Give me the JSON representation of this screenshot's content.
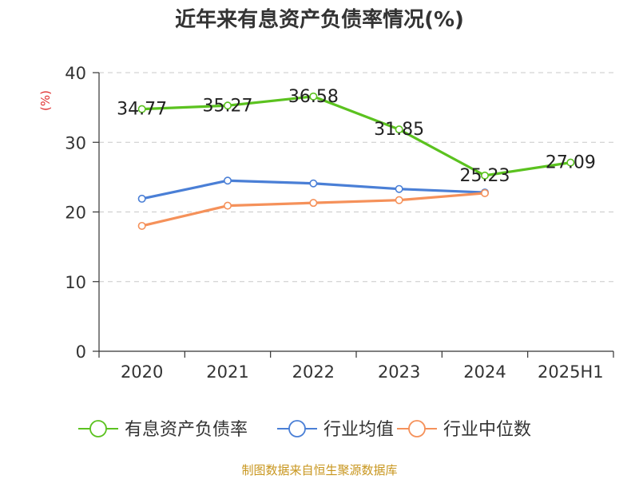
{
  "chart_data": {
    "type": "line",
    "title": "近年来有息资产负债率情况(%)",
    "ylabel": "(%)",
    "xlabel": "",
    "categories": [
      "2020",
      "2021",
      "2022",
      "2023",
      "2024",
      "2025H1"
    ],
    "ylim": [
      0,
      40
    ],
    "yticks": [
      0,
      10,
      20,
      30,
      40
    ],
    "grid": true,
    "legend_position": "bottom",
    "series": [
      {
        "name": "有息资产负债率",
        "color": "#5bc21f",
        "values": [
          34.77,
          35.27,
          36.58,
          31.85,
          25.23,
          27.09
        ],
        "labels": [
          "34.77",
          "35.27",
          "36.58",
          "31.85",
          "25.23",
          "27.09"
        ],
        "show_labels": true
      },
      {
        "name": "行业均值",
        "color": "#4a7fd6",
        "values": [
          21.9,
          24.5,
          24.1,
          23.3,
          22.8,
          null
        ],
        "show_labels": false
      },
      {
        "name": "行业中位数",
        "color": "#f5915a",
        "values": [
          18.0,
          20.9,
          21.3,
          21.7,
          22.7,
          null
        ],
        "show_labels": false
      }
    ]
  },
  "source": "制图数据来自恒生聚源数据库",
  "colors": {
    "axis": "#333333",
    "grid": "#c8c8c8",
    "ylabel": "#e03030",
    "source": "#c8961e",
    "title": "#333333"
  }
}
